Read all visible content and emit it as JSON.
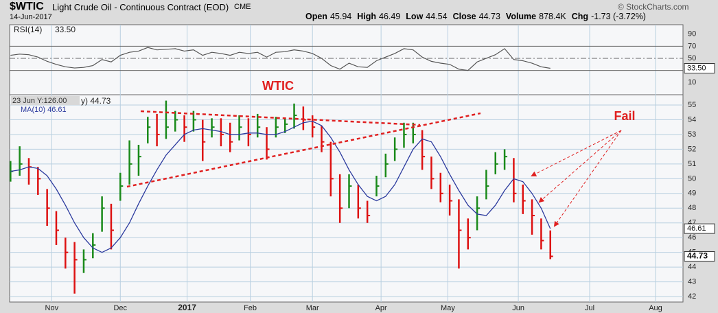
{
  "header": {
    "symbol": "$WTIC",
    "name": "Light Crude Oil - Continuous Contract (EOD)",
    "exchange": "CME",
    "date": "14-Jun-2017",
    "fields": [
      {
        "label": "Open",
        "value": "45.94"
      },
      {
        "label": "High",
        "value": "46.49"
      },
      {
        "label": "Low",
        "value": "44.54"
      },
      {
        "label": "Close",
        "value": "44.73"
      },
      {
        "label": "Volume",
        "value": "878.4K"
      },
      {
        "label": "Chg",
        "value": "-1.73 (-3.72%)"
      }
    ],
    "credit": "© StockCharts.com"
  },
  "chart_data": [
    {
      "type": "line",
      "title": "RSI(14)",
      "last_label": "33.50",
      "series": [
        {
          "name": "RSI(14)",
          "color": "#555555",
          "values": [
            55,
            57,
            56,
            52,
            45,
            40,
            36,
            34,
            35,
            38,
            48,
            44,
            55,
            60,
            62,
            68,
            64,
            65,
            66,
            62,
            64,
            55,
            60,
            58,
            55,
            60,
            58,
            60,
            52,
            60,
            61,
            64,
            62,
            58,
            50,
            38,
            32,
            42,
            36,
            35,
            46,
            52,
            58,
            66,
            64,
            52,
            45,
            42,
            40,
            32,
            30,
            44,
            50,
            56,
            66,
            48,
            46,
            42,
            36,
            33.5
          ]
        }
      ],
      "xlim": [
        -0.1,
        73.5
      ],
      "ylim": [
        -10.3,
        105.7
      ],
      "yticks": [
        10,
        50,
        70,
        90
      ],
      "levels": [
        30,
        50,
        70
      ]
    },
    {
      "type": "ohlc",
      "title": "WTIC",
      "annotation": "Fail",
      "tooltip": "23 Jun Y:126.00",
      "legend": "y) 44.73",
      "up_color": "#1a8a1a",
      "down_color": "#dd1111",
      "close": [
        50.5,
        51,
        50.8,
        50,
        48,
        46.5,
        45,
        44.5,
        44.5,
        45.5,
        48,
        46.5,
        49.5,
        51,
        51.5,
        53.5,
        53,
        53.5,
        54,
        53.5,
        54,
        52.5,
        53.5,
        53,
        52.5,
        53.5,
        53,
        53.5,
        52,
        53.5,
        53.7,
        54.3,
        54,
        53.5,
        52.5,
        50,
        48,
        49.5,
        48,
        47.5,
        49.5,
        51,
        52,
        53,
        53,
        51.5,
        50,
        49,
        48.5,
        46.5,
        46,
        48,
        49.5,
        51,
        51.5,
        49,
        48.5,
        47.5,
        45.8,
        44.73
      ],
      "high": [
        51.2,
        52.2,
        51.4,
        50.8,
        49.3,
        47.8,
        46,
        45.7,
        45.2,
        46.3,
        48.8,
        48.3,
        50.4,
        52.6,
        52.3,
        54.2,
        54.4,
        55.3,
        54.6,
        54.3,
        54.6,
        54,
        54.1,
        54.1,
        53.8,
        54.3,
        54.1,
        54.4,
        53.5,
        54.2,
        54.1,
        55.1,
        54.9,
        54.3,
        53.6,
        52.5,
        50.3,
        50.3,
        49.6,
        48.5,
        50.2,
        51.7,
        52.8,
        53.8,
        53.8,
        53.3,
        51.5,
        50.4,
        49.6,
        48.6,
        47.3,
        48.8,
        50.6,
        51.8,
        52,
        51.4,
        49.6,
        48.6,
        47.3,
        46.49
      ],
      "low": [
        49.8,
        50.2,
        49.6,
        48.9,
        46.8,
        45.5,
        43.9,
        42.2,
        43.6,
        44.6,
        46.4,
        45.2,
        48.5,
        49.6,
        50.2,
        52.4,
        52.2,
        52.7,
        53.2,
        52.5,
        53.2,
        51.2,
        52.8,
        52.2,
        51.8,
        52.6,
        52.2,
        52.8,
        51.3,
        52.8,
        53.1,
        53.4,
        53.3,
        52.8,
        51.8,
        48.8,
        47,
        48,
        47.3,
        47,
        48.8,
        50.1,
        51.2,
        52.1,
        52.4,
        50.6,
        49.3,
        48.4,
        47.5,
        43.9,
        45.2,
        46.5,
        48.6,
        50.3,
        50.6,
        48.4,
        47.6,
        46.2,
        45.2,
        44.54
      ],
      "series": [
        {
          "name": "MA(10) 46.61",
          "color": "#2b3a9e",
          "last_label": "46.61",
          "values": [
            50.5,
            50.6,
            50.8,
            50.7,
            50.2,
            49.3,
            48.2,
            47,
            46,
            45.3,
            45,
            45.3,
            46,
            47,
            48.3,
            49.5,
            50.6,
            51.6,
            52.3,
            53,
            53.3,
            53.4,
            53.3,
            53.2,
            53,
            53,
            53.1,
            53.1,
            53,
            53,
            53.2,
            53.5,
            53.8,
            53.9,
            53.6,
            52.8,
            51.8,
            50.6,
            49.6,
            48.8,
            48.5,
            48.8,
            49.6,
            50.8,
            52,
            52.7,
            52.5,
            51.5,
            50.3,
            49.2,
            48.2,
            47.6,
            47.5,
            48.2,
            49.2,
            50,
            49.8,
            49,
            48,
            46.61
          ]
        }
      ],
      "xlim": [
        -0.1,
        73.5
      ],
      "xticks": [
        {
          "value": 4.5,
          "label": "Nov"
        },
        {
          "value": 12,
          "label": "Dec"
        },
        {
          "value": 19.3,
          "label": "2017"
        },
        {
          "value": 26.2,
          "label": "Feb"
        },
        {
          "value": 33,
          "label": "Mar"
        },
        {
          "value": 40.5,
          "label": "Apr"
        },
        {
          "value": 47.8,
          "label": "May"
        },
        {
          "value": 55.5,
          "label": "Jun"
        },
        {
          "value": 63.3,
          "label": "Jul"
        },
        {
          "value": 70.5,
          "label": "Aug"
        }
      ],
      "ylim": [
        41.63,
        55.7
      ],
      "yticks": [
        42,
        43,
        44,
        45,
        46,
        47,
        48,
        49,
        50,
        51,
        52,
        53,
        54,
        55
      ],
      "grid": true
    }
  ]
}
